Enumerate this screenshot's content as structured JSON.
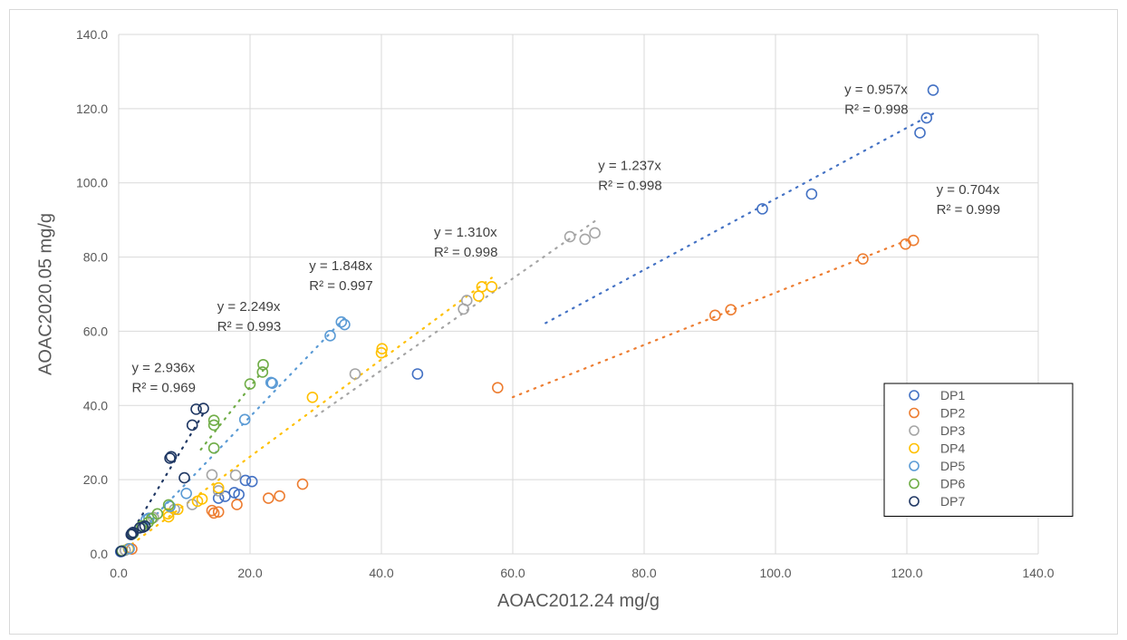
{
  "chart_data": {
    "type": "scatter",
    "title": "",
    "xlabel": "AOAC2012.24 mg/g",
    "ylabel": "AOAC2020.05 mg/g",
    "xlim": [
      0,
      140
    ],
    "ylim": [
      0,
      140
    ],
    "xticks": [
      0,
      20,
      40,
      60,
      80,
      100,
      120,
      140
    ],
    "yticks": [
      0,
      20,
      40,
      60,
      80,
      100,
      120,
      140
    ],
    "tick_labels_x": [
      "0.0",
      "20.0",
      "40.0",
      "60.0",
      "80.0",
      "100.0",
      "120.0",
      "140.0"
    ],
    "tick_labels_y": [
      "0.0",
      "20.0",
      "40.0",
      "60.0",
      "80.0",
      "100.0",
      "120.0",
      "140.0"
    ],
    "grid": true,
    "legend_position": "bottom-right",
    "series": [
      {
        "name": "DP1",
        "color": "#4472C4",
        "slope": 0.957,
        "trend_x": [
          65,
          124
        ],
        "points": [
          [
            124,
            125
          ],
          [
            123,
            117.5
          ],
          [
            122,
            113.5
          ],
          [
            105.5,
            97
          ],
          [
            98,
            93
          ],
          [
            45.5,
            48.5
          ],
          [
            20.3,
            19.5
          ],
          [
            19.3,
            19.8
          ],
          [
            18.3,
            16
          ],
          [
            17.6,
            16.5
          ],
          [
            15.2,
            15
          ],
          [
            16.2,
            15.5
          ],
          [
            0.3,
            0.6
          ]
        ]
      },
      {
        "name": "DP2",
        "color": "#ED7D31",
        "slope": 0.704,
        "trend_x": [
          60,
          121
        ],
        "points": [
          [
            121,
            84.5
          ],
          [
            119.8,
            83.5
          ],
          [
            113.3,
            79.5
          ],
          [
            93.2,
            65.8
          ],
          [
            90.8,
            64.3
          ],
          [
            57.7,
            44.8
          ],
          [
            28,
            18.8
          ],
          [
            24.5,
            15.6
          ],
          [
            22.8,
            15
          ],
          [
            18,
            13.3
          ],
          [
            15.2,
            11.3
          ],
          [
            14.5,
            11
          ],
          [
            14.2,
            11.7
          ],
          [
            2,
            1.3
          ]
        ]
      },
      {
        "name": "DP3",
        "color": "#A5A5A5",
        "slope": 1.237,
        "trend_x": [
          30,
          72.5
        ],
        "points": [
          [
            72.5,
            86.5
          ],
          [
            71,
            84.8
          ],
          [
            68.7,
            85.5
          ],
          [
            53,
            68.3
          ],
          [
            52.5,
            66
          ],
          [
            36,
            48.5
          ],
          [
            17.8,
            21.2
          ],
          [
            14.2,
            21.3
          ],
          [
            15.2,
            17
          ],
          [
            11.2,
            13.3
          ],
          [
            8.5,
            12
          ],
          [
            5.3,
            9.8
          ],
          [
            1,
            1
          ]
        ]
      },
      {
        "name": "DP4",
        "color": "#FFC000",
        "slope": 1.31,
        "trend_x": [
          2,
          56.8
        ],
        "points": [
          [
            56.8,
            72
          ],
          [
            55.3,
            72
          ],
          [
            54.8,
            69.5
          ],
          [
            40.1,
            55.3
          ],
          [
            40,
            54.2
          ],
          [
            29.5,
            42.2
          ],
          [
            15.2,
            17.8
          ],
          [
            12.7,
            14.8
          ],
          [
            12,
            14.2
          ],
          [
            9,
            12
          ],
          [
            7.6,
            10
          ],
          [
            7.5,
            10.8
          ],
          [
            1.5,
            1.4
          ]
        ]
      },
      {
        "name": "DP5",
        "color": "#5B9BD5",
        "slope": 1.848,
        "trend_x": [
          5,
          34.4
        ],
        "points": [
          [
            34.4,
            61.8
          ],
          [
            33.9,
            62.5
          ],
          [
            32.2,
            58.8
          ],
          [
            23.4,
            46
          ],
          [
            23.2,
            46.2
          ],
          [
            19.2,
            36.2
          ],
          [
            10.3,
            16.3
          ],
          [
            7.8,
            12.8
          ],
          [
            4.6,
            9.6
          ],
          [
            4.2,
            9.2
          ],
          [
            1.6,
            1.4
          ],
          [
            0.5,
            0.7
          ]
        ]
      },
      {
        "name": "DP6",
        "color": "#70AD47",
        "slope": 2.249,
        "trend_x": [
          12.5,
          22
        ],
        "points": [
          [
            22,
            51
          ],
          [
            21.9,
            49
          ],
          [
            20,
            45.8
          ],
          [
            14.5,
            36
          ],
          [
            14.5,
            34.7
          ],
          [
            14.5,
            28.5
          ],
          [
            7.6,
            13.2
          ],
          [
            5.9,
            10.8
          ],
          [
            5,
            9.5
          ],
          [
            4.5,
            8.5
          ],
          [
            3.5,
            7.5
          ],
          [
            2.2,
            5.5
          ],
          [
            0.5,
            0.8
          ]
        ]
      },
      {
        "name": "DP7",
        "color": "#203864",
        "slope": 2.936,
        "trend_x": [
          3,
          12.9
        ],
        "points": [
          [
            12.9,
            39.2
          ],
          [
            11.8,
            39
          ],
          [
            11.2,
            34.7
          ],
          [
            8,
            26.2
          ],
          [
            7.8,
            25.8
          ],
          [
            10,
            20.5
          ],
          [
            4,
            7.5
          ],
          [
            3.2,
            7
          ],
          [
            3.7,
            7.2
          ],
          [
            2.2,
            5.8
          ],
          [
            1.9,
            5.2
          ],
          [
            2,
            5.5
          ],
          [
            0.4,
            0.7
          ]
        ]
      }
    ],
    "annotations": [
      {
        "line1": "y = 2.936x",
        "line2": "R² = 0.969",
        "x": 2,
        "y": 49
      },
      {
        "line1": "y = 2.249x",
        "line2": "R² = 0.993",
        "x": 15,
        "y": 65.5
      },
      {
        "line1": "y = 1.848x",
        "line2": "R² = 0.997",
        "x": 29,
        "y": 76.5
      },
      {
        "line1": "y = 1.310x",
        "line2": "R² = 0.998",
        "x": 48,
        "y": 85.5
      },
      {
        "line1": "y = 1.237x",
        "line2": "R² = 0.998",
        "x": 73,
        "y": 103.5
      },
      {
        "line1": "y = 0.704x",
        "line2": "R² = 0.999",
        "x": 124.5,
        "y": 97
      },
      {
        "line1": "y = 0.957x",
        "line2": "R² = 0.998",
        "x": 110.5,
        "y": 124
      }
    ]
  }
}
